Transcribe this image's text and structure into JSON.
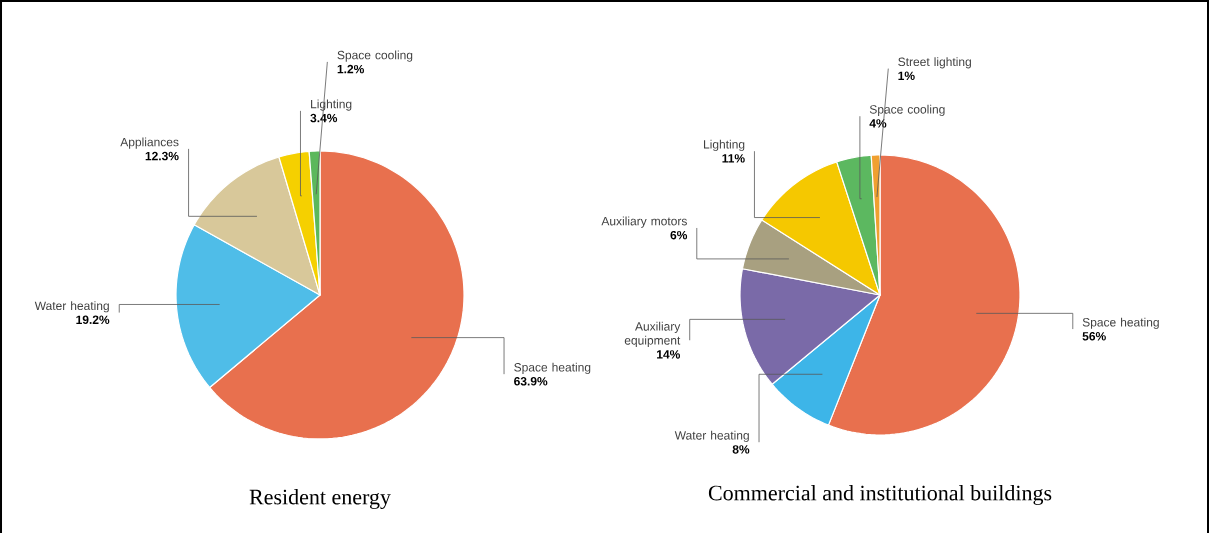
{
  "chart_data": [
    {
      "type": "pie",
      "title": "Resident energy",
      "categories": [
        "Space heating",
        "Water heating",
        "Appliances",
        "Lighting",
        "Space cooling"
      ],
      "values": [
        63.9,
        19.2,
        12.3,
        3.4,
        1.2
      ],
      "value_labels": [
        "63.9%",
        "19.2%",
        "12.3%",
        "3.4%",
        "1.2%"
      ],
      "colors": [
        "#e8704e",
        "#4fbde8",
        "#d8c89a",
        "#f5d000",
        "#5cb85c"
      ]
    },
    {
      "type": "pie",
      "title": "Commercial and institutional buildings",
      "categories": [
        "Space heating",
        "Water heating",
        "Auxiliary equipment",
        "Auxiliary motors",
        "Lighting",
        "Space cooling",
        "Street lighting"
      ],
      "values": [
        56,
        8,
        14,
        6,
        11,
        4,
        1
      ],
      "value_labels": [
        "56%",
        "8%",
        "14%",
        "6%",
        "11%",
        "4%",
        "1%"
      ],
      "colors": [
        "#e8704e",
        "#3db5e8",
        "#7a6aa8",
        "#a8a080",
        "#f5c800",
        "#5cb860",
        "#f0a030"
      ]
    }
  ]
}
